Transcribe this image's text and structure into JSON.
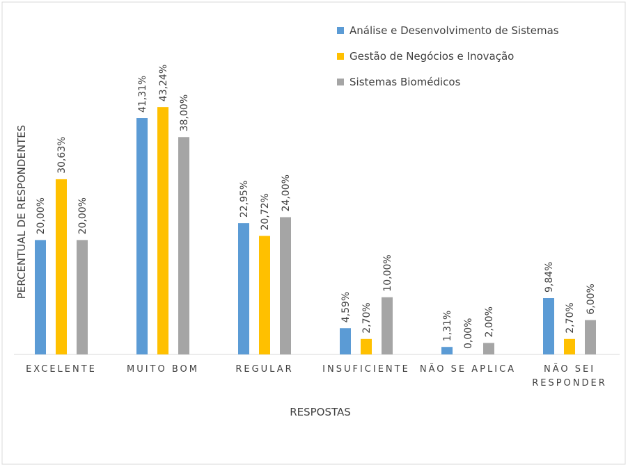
{
  "chart_data": {
    "type": "bar",
    "categories": [
      "EXCELENTE",
      "MUITO BOM",
      "REGULAR",
      "INSUFICIENTE",
      "NÃO SE APLICA",
      "NÃO SEI RESPONDER"
    ],
    "series": [
      {
        "name": "Análise e Desenvolvimento de Sistemas",
        "color": "#5b9bd5",
        "values": [
          20.0,
          41.31,
          22.95,
          4.59,
          1.31,
          9.84
        ],
        "value_labels": [
          "20,00%",
          "41,31%",
          "22,95%",
          "4,59%",
          "1,31%",
          "9,84%"
        ]
      },
      {
        "name": "Gestão de Negócios e Inovação",
        "color": "#ffc000",
        "values": [
          30.63,
          43.24,
          20.72,
          2.7,
          0.0,
          2.7
        ],
        "value_labels": [
          "30,63%",
          "43,24%",
          "20,72%",
          "2,70%",
          "0,00%",
          "2,70%"
        ]
      },
      {
        "name": "Sistemas Biomédicos",
        "color": "#a5a5a5",
        "values": [
          20.0,
          38.0,
          24.0,
          10.0,
          2.0,
          6.0
        ],
        "value_labels": [
          "20,00%",
          "38,00%",
          "24,00%",
          "10,00%",
          "2,00%",
          "6,00%"
        ]
      }
    ],
    "x_label": "RESPOSTAS",
    "y_label": "PERCENTUAL DE RESPONDENTES",
    "ylim": [
      0,
      50
    ],
    "legend": "top-right"
  }
}
